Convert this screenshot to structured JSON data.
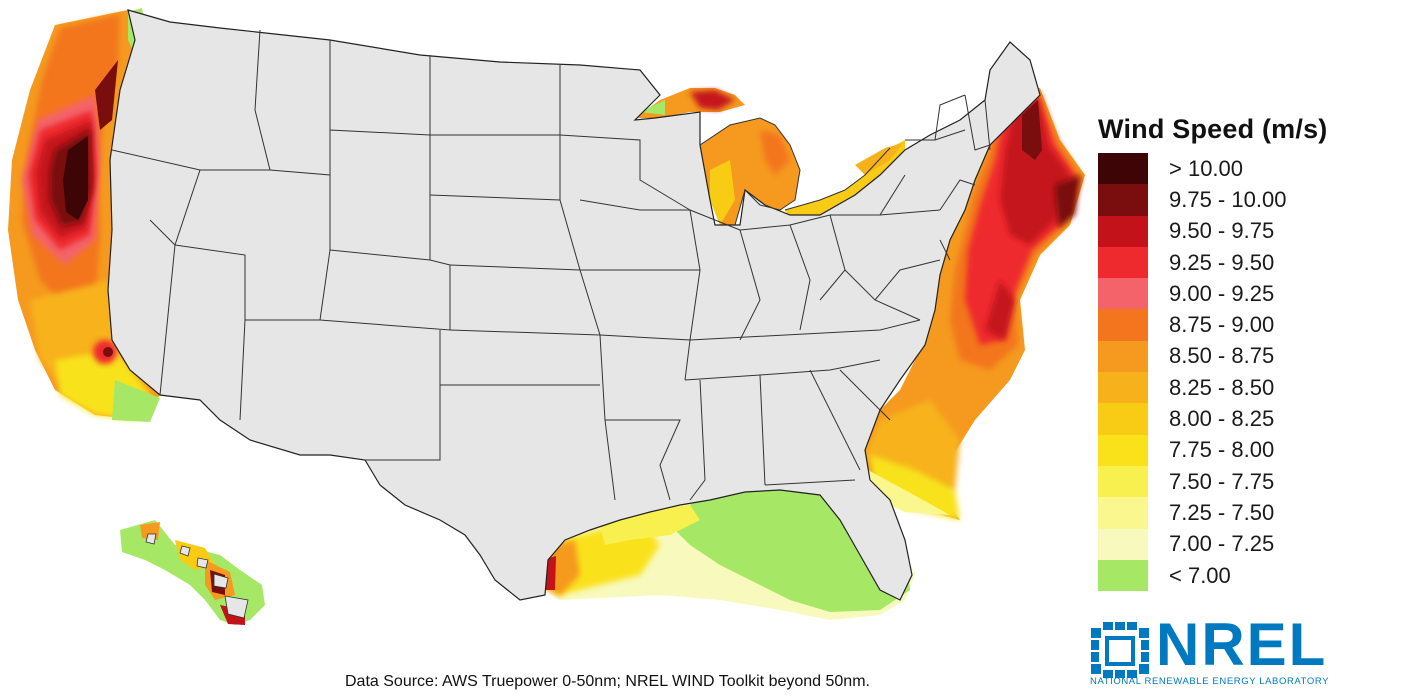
{
  "legend": {
    "title": "Wind Speed (m/s)",
    "items": [
      {
        "label": "> 10.00",
        "color": "#3d0505"
      },
      {
        "label": "9.75 - 10.00",
        "color": "#7a0d0d"
      },
      {
        "label": "9.50 - 9.75",
        "color": "#c4121a"
      },
      {
        "label": "9.25 - 9.50",
        "color": "#ee2a2f"
      },
      {
        "label": "9.00 - 9.25",
        "color": "#f4636a"
      },
      {
        "label": "8.75 - 9.00",
        "color": "#f3761e"
      },
      {
        "label": "8.50 - 8.75",
        "color": "#f59a1f"
      },
      {
        "label": "8.25 - 8.50",
        "color": "#f7b21b"
      },
      {
        "label": "8.00 - 8.25",
        "color": "#f8cb14"
      },
      {
        "label": "7.75 - 8.00",
        "color": "#f9e21a"
      },
      {
        "label": "7.50 - 7.75",
        "color": "#f8f04f"
      },
      {
        "label": "7.25 - 7.50",
        "color": "#f9f78d"
      },
      {
        "label": "7.00 - 7.25",
        "color": "#f8f9bd"
      },
      {
        "label": "< 7.00",
        "color": "#a6e865"
      }
    ]
  },
  "source_note": "Data Source: AWS Truepower 0-50nm; NREL WIND Toolkit beyond 50nm.",
  "logo": {
    "name": "NREL",
    "subtitle": "NATIONAL RENEWABLE ENERGY LABORATORY",
    "color": "#0079c1"
  },
  "map": {
    "land_color": "#e6e6e6",
    "border_color": "#333333"
  }
}
